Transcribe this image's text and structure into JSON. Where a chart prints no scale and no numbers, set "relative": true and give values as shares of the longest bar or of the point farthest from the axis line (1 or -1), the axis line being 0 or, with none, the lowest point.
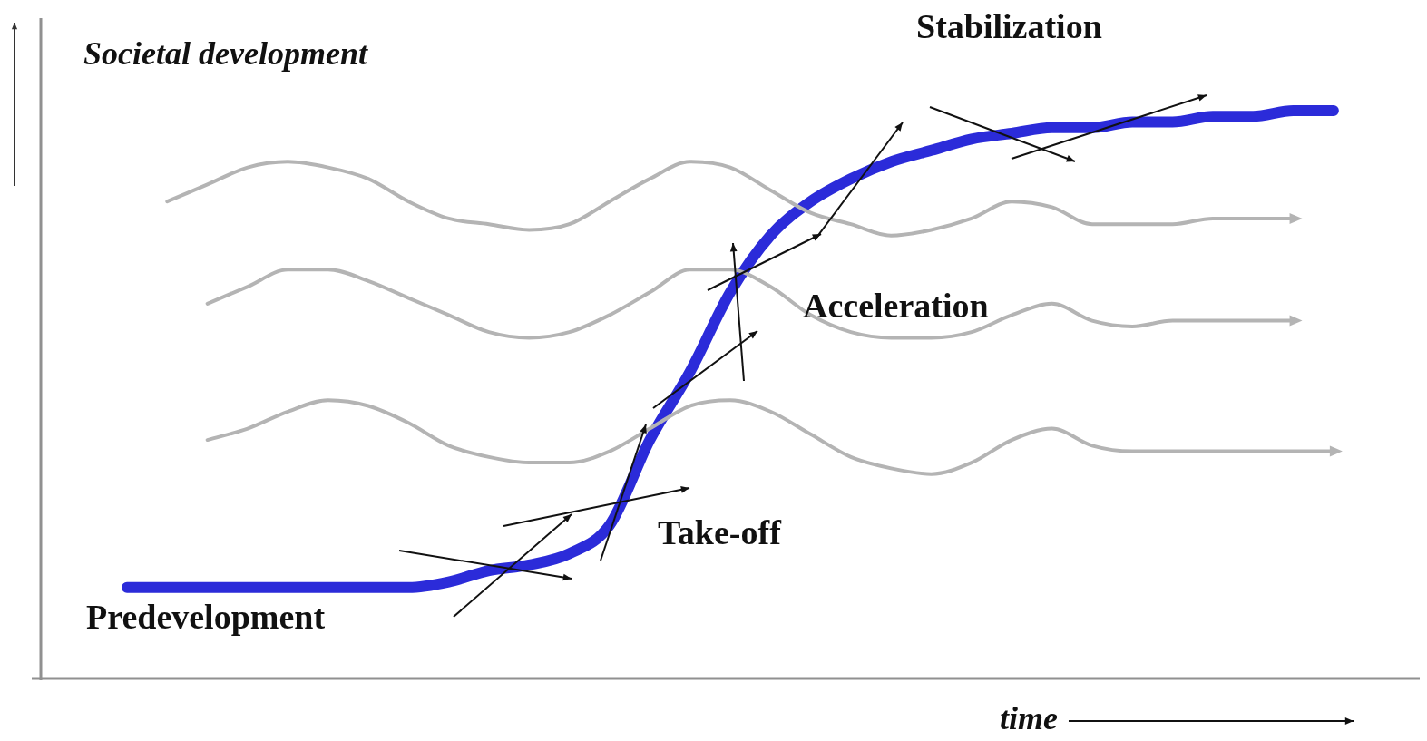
{
  "chart_data": {
    "type": "line",
    "relative": true,
    "ylabel": "Societal development",
    "xlabel": "time",
    "categories": [
      null,
      null,
      null,
      null,
      null,
      null,
      null,
      null,
      null,
      null,
      null,
      null,
      null,
      null,
      null,
      null,
      null,
      null,
      null,
      null,
      null,
      null,
      null,
      null,
      null,
      null,
      null,
      null,
      null,
      null,
      null
    ],
    "series": [
      {
        "color": "#b4b4b4",
        "values": [
          null,
          0.84,
          0.87,
          0.9,
          0.91,
          0.9,
          0.88,
          0.84,
          0.81,
          0.8,
          0.79,
          0.8,
          0.84,
          0.88,
          0.91,
          0.9,
          0.86,
          0.82,
          0.8,
          0.78,
          0.79,
          0.81,
          0.84,
          0.83,
          0.8,
          0.8,
          0.8,
          0.81,
          0.81,
          0.81,
          null
        ]
      },
      {
        "color": "#b4b4b4",
        "values": [
          null,
          null,
          0.66,
          0.69,
          0.72,
          0.72,
          0.7,
          0.67,
          0.64,
          0.61,
          0.6,
          0.61,
          0.64,
          0.68,
          0.72,
          0.72,
          0.69,
          0.64,
          0.61,
          0.6,
          0.6,
          0.61,
          0.64,
          0.66,
          0.63,
          0.62,
          0.63,
          0.63,
          0.63,
          0.63,
          null
        ]
      },
      {
        "color": "#b4b4b4",
        "values": [
          null,
          null,
          0.42,
          0.44,
          0.47,
          0.49,
          0.48,
          0.45,
          0.41,
          0.39,
          0.38,
          0.38,
          0.4,
          0.44,
          0.48,
          0.49,
          0.47,
          0.43,
          0.39,
          0.37,
          0.36,
          0.38,
          0.42,
          0.44,
          0.41,
          0.4,
          0.4,
          0.4,
          0.4,
          0.4,
          0.4
        ]
      },
      {
        "color": "#2b2bd9",
        "values": [
          0.16,
          0.16,
          0.16,
          0.16,
          0.16,
          0.16,
          0.16,
          0.16,
          0.17,
          0.19,
          0.2,
          0.22,
          0.27,
          0.42,
          0.54,
          0.68,
          0.78,
          0.84,
          0.88,
          0.91,
          0.93,
          0.95,
          0.96,
          0.97,
          0.97,
          0.98,
          0.98,
          0.99,
          0.99,
          1.0,
          1.0
        ]
      }
    ],
    "annotations": [
      "Stabilization",
      "Acceleration",
      "Take-off",
      "Predevelopment"
    ]
  }
}
